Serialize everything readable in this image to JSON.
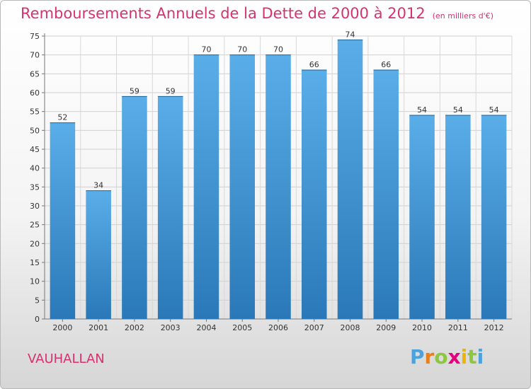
{
  "title": "Remboursements Annuels de la Dette de 2000 à 2012",
  "unit": "(en milliers d'€)",
  "place": "VAUHALLAN",
  "logo": {
    "letters": [
      "P",
      "r",
      "o",
      "x",
      "i",
      "t",
      "i"
    ],
    "colors": [
      "#4aa3df",
      "#e87f1e",
      "#8dc63f",
      "#e5007e",
      "#f0b400",
      "#8dc63f",
      "#4aa3df"
    ]
  },
  "chart_data": {
    "type": "bar",
    "title": "Remboursements Annuels de la Dette de 2000 à 2012",
    "unit": "(en milliers d'€)",
    "categories": [
      "2000",
      "2001",
      "2002",
      "2003",
      "2004",
      "2005",
      "2006",
      "2007",
      "2008",
      "2009",
      "2010",
      "2011",
      "2012"
    ],
    "values": [
      52,
      34,
      59,
      59,
      70,
      70,
      70,
      66,
      74,
      66,
      54,
      54,
      54
    ],
    "ylim": [
      0,
      75
    ],
    "yticks": [
      0,
      5,
      10,
      15,
      20,
      25,
      30,
      35,
      40,
      45,
      50,
      55,
      60,
      65,
      70,
      75
    ],
    "grid": true,
    "bar_color": "#3d8fd0"
  }
}
